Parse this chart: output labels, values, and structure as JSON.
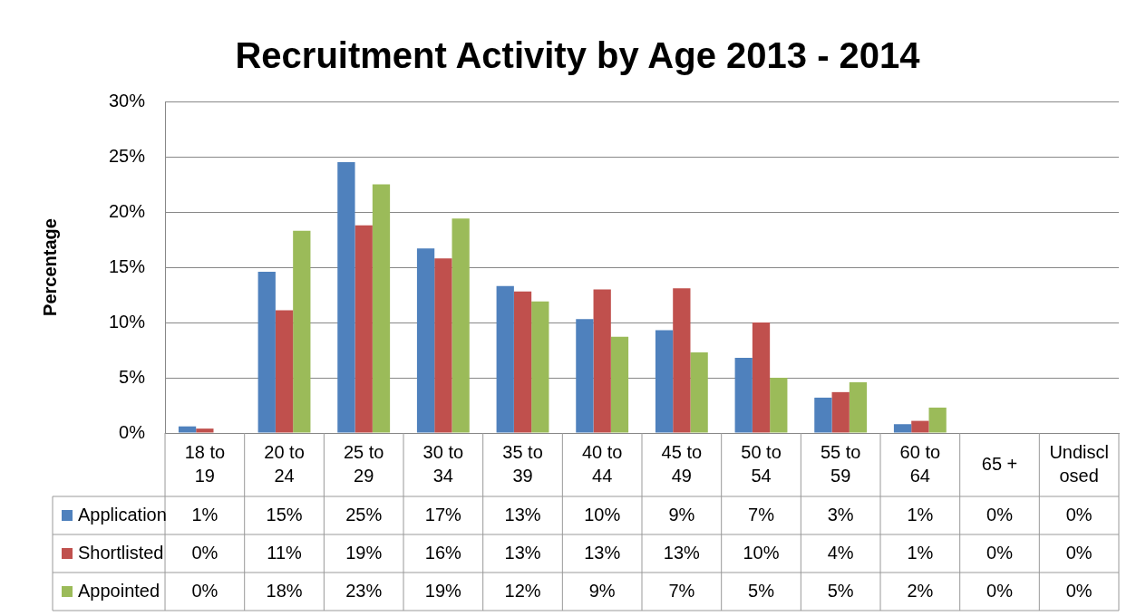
{
  "chart_data": {
    "type": "bar",
    "title": "Recruitment Activity by Age 2013 - 2014",
    "ylabel": "Percentage",
    "categories": [
      "18 to 19",
      "20 to 24",
      "25 to 29",
      "30 to 34",
      "35 to 39",
      "40 to 44",
      "45 to 49",
      "50 to 54",
      "55 to 59",
      "60 to 64",
      "65 +",
      "Undisclosed"
    ],
    "series": [
      {
        "name": "Application",
        "color": "#4f81bd",
        "values": [
          0.6,
          14.6,
          24.5,
          16.7,
          13.3,
          10.3,
          9.3,
          6.8,
          3.2,
          0.8,
          0,
          0
        ],
        "value_labels": [
          "1%",
          "15%",
          "25%",
          "17%",
          "13%",
          "10%",
          "9%",
          "7%",
          "3%",
          "1%",
          "0%",
          "0%"
        ]
      },
      {
        "name": "Shortlisted",
        "color": "#c0504d",
        "values": [
          0.4,
          11.1,
          18.8,
          15.8,
          12.8,
          13.0,
          13.1,
          10.0,
          3.7,
          1.1,
          0,
          0
        ],
        "value_labels": [
          "0%",
          "11%",
          "19%",
          "16%",
          "13%",
          "13%",
          "13%",
          "10%",
          "4%",
          "1%",
          "0%",
          "0%"
        ]
      },
      {
        "name": "Appointed",
        "color": "#9bbb59",
        "values": [
          0,
          18.3,
          22.5,
          19.4,
          11.9,
          8.7,
          7.3,
          5.0,
          4.6,
          2.3,
          0,
          0
        ],
        "value_labels": [
          "0%",
          "18%",
          "23%",
          "19%",
          "12%",
          "9%",
          "7%",
          "5%",
          "5%",
          "2%",
          "0%",
          "0%"
        ]
      }
    ],
    "ylim": [
      0,
      30
    ],
    "yticks": [
      {
        "value": 0,
        "label": "0%"
      },
      {
        "value": 5,
        "label": "5%"
      },
      {
        "value": 10,
        "label": "10%"
      },
      {
        "value": 15,
        "label": "15%"
      },
      {
        "value": 20,
        "label": "20%"
      },
      {
        "value": 25,
        "label": "25%"
      },
      {
        "value": 30,
        "label": "30%"
      }
    ],
    "grid": "y",
    "legend": "bottom"
  }
}
